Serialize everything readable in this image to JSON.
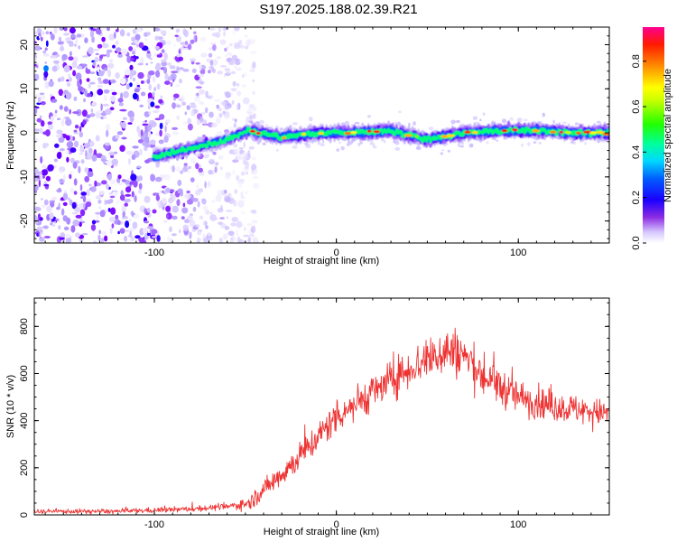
{
  "figure": {
    "title": "S197.2025.188.02.39.R21"
  },
  "chart_data": [
    {
      "type": "heatmap",
      "xlabel": "Height of straight line (km)",
      "ylabel": "Frequency (Hz)",
      "xlim": [
        -166,
        150
      ],
      "ylim": [
        -25,
        24
      ],
      "x_ticks": [
        -100,
        0,
        100
      ],
      "y_ticks": [
        -20,
        -10,
        0,
        10,
        20
      ],
      "colorbar": {
        "label": "Normalized spectral amplitude",
        "range": [
          0,
          0.95
        ],
        "ticks": [
          0.0,
          0.2,
          0.4,
          0.6,
          0.8
        ],
        "colormap": [
          "#ffffff",
          "#b49cff",
          "#7b00ff",
          "#0000ff",
          "#00c8ff",
          "#00ff80",
          "#00ff00",
          "#ffff00",
          "#ff8000",
          "#ff0000",
          "#ff0090"
        ]
      },
      "noise_region_end_km": -48,
      "ridge": [
        {
          "x": -100,
          "y": -5.5
        },
        {
          "x": -80,
          "y": -3.5
        },
        {
          "x": -60,
          "y": -1.5
        },
        {
          "x": -48,
          "y": 0.5
        },
        {
          "x": -30,
          "y": -1.0
        },
        {
          "x": -10,
          "y": 0.0
        },
        {
          "x": 10,
          "y": 0.0
        },
        {
          "x": 30,
          "y": 0.5
        },
        {
          "x": 50,
          "y": -1.5
        },
        {
          "x": 70,
          "y": 0.0
        },
        {
          "x": 90,
          "y": 0.5
        },
        {
          "x": 110,
          "y": 0.5
        },
        {
          "x": 130,
          "y": 0.0
        },
        {
          "x": 150,
          "y": 0.0
        }
      ]
    },
    {
      "type": "line",
      "xlabel": "Height of straight line (km)",
      "ylabel": "SNR (10 * v/v)",
      "xlim": [
        -166,
        150
      ],
      "ylim": [
        0,
        920
      ],
      "x_ticks": [
        -100,
        0,
        100
      ],
      "y_ticks": [
        0,
        200,
        400,
        600,
        800
      ],
      "series": [
        {
          "color": "#ee3333",
          "trend": [
            {
              "x": -166,
              "y": 15
            },
            {
              "x": -120,
              "y": 15
            },
            {
              "x": -80,
              "y": 25
            },
            {
              "x": -60,
              "y": 35
            },
            {
              "x": -48,
              "y": 50
            },
            {
              "x": -38,
              "y": 120
            },
            {
              "x": -25,
              "y": 210
            },
            {
              "x": -10,
              "y": 330
            },
            {
              "x": 0,
              "y": 420
            },
            {
              "x": 20,
              "y": 520
            },
            {
              "x": 40,
              "y": 620
            },
            {
              "x": 60,
              "y": 700
            },
            {
              "x": 70,
              "y": 680
            },
            {
              "x": 80,
              "y": 590
            },
            {
              "x": 100,
              "y": 500
            },
            {
              "x": 120,
              "y": 460
            },
            {
              "x": 150,
              "y": 430
            }
          ],
          "noise_amplitude": [
            {
              "x": -166,
              "y": 10
            },
            {
              "x": -60,
              "y": 14
            },
            {
              "x": -30,
              "y": 60
            },
            {
              "x": 0,
              "y": 80
            },
            {
              "x": 40,
              "y": 90
            },
            {
              "x": 60,
              "y": 120
            },
            {
              "x": 100,
              "y": 80
            },
            {
              "x": 150,
              "y": 60
            }
          ]
        }
      ]
    }
  ]
}
